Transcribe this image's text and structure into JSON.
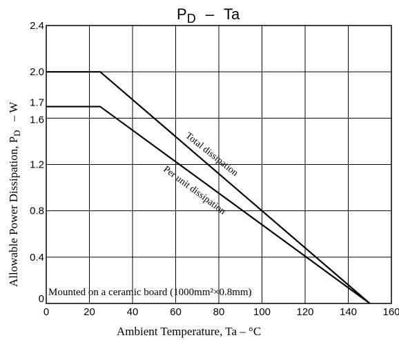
{
  "chart_data": {
    "type": "line",
    "title": {
      "main": "P",
      "main_sub": "D",
      "dash": "–",
      "right": "Ta"
    },
    "xlabel": "Ambient Temperature, Ta  –  °C",
    "ylabel": {
      "main": "Allowable Power Dissipation, P",
      "sub": "D",
      "tail": " – W"
    },
    "xlim": [
      0,
      160
    ],
    "ylim": [
      0,
      2.4
    ],
    "x_ticks": [
      "0",
      "20",
      "40",
      "60",
      "80",
      "100",
      "120",
      "140",
      "160"
    ],
    "y_ticks": [
      "0",
      "0.4",
      "0.8",
      "1.2",
      "1.6",
      "1.7",
      "2.0",
      "2.4"
    ],
    "grid": true,
    "series": [
      {
        "name": "Total dissipation",
        "points": [
          [
            0,
            2.0
          ],
          [
            25,
            2.0
          ],
          [
            150,
            0
          ]
        ]
      },
      {
        "name": "Per unit dissipation",
        "points": [
          [
            0,
            1.7
          ],
          [
            25,
            1.7
          ],
          [
            150,
            0
          ]
        ]
      }
    ],
    "annotation": "Mounted on a ceramic board (1000mm²×0.8mm)"
  }
}
